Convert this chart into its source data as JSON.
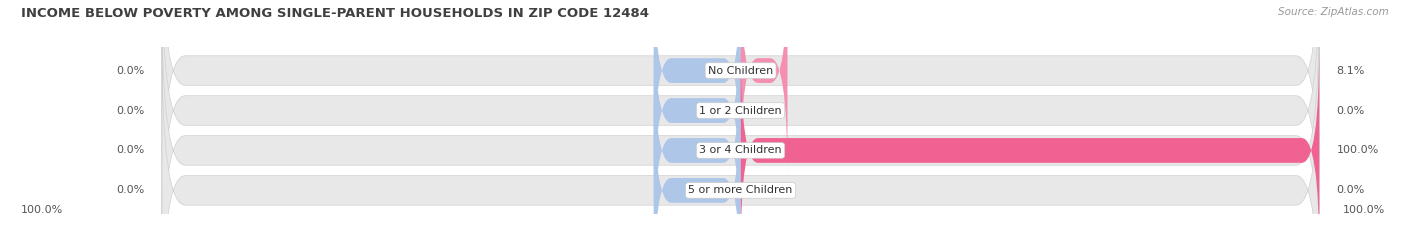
{
  "title": "INCOME BELOW POVERTY AMONG SINGLE-PARENT HOUSEHOLDS IN ZIP CODE 12484",
  "source": "Source: ZipAtlas.com",
  "categories": [
    "No Children",
    "1 or 2 Children",
    "3 or 4 Children",
    "5 or more Children"
  ],
  "single_father": [
    0.0,
    0.0,
    0.0,
    0.0
  ],
  "single_mother": [
    8.1,
    0.0,
    100.0,
    0.0
  ],
  "father_color": "#aec6e8",
  "mother_color": "#f06292",
  "mother_color_light": "#f48fb1",
  "bar_bg_color": "#e8e8e8",
  "bar_outline_color": "#d0d0d0",
  "title_color": "#404040",
  "text_color": "#555555",
  "max_value": 100.0,
  "left_label": "100.0%",
  "right_label": "100.0%",
  "background_color": "#ffffff",
  "bar_row_bg": "#f5f5f5"
}
